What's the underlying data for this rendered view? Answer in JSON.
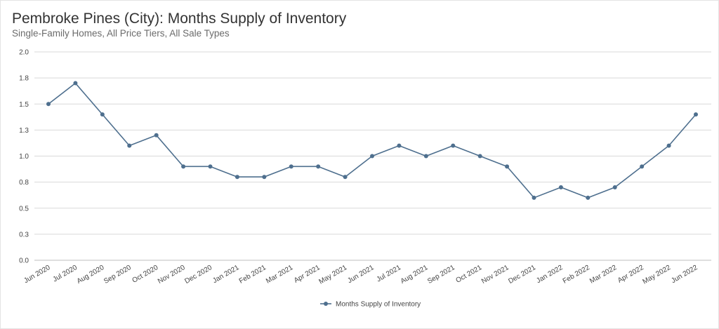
{
  "chart_data": {
    "type": "line",
    "title": "Pembroke Pines (City): Months Supply of Inventory",
    "subtitle": "Single-Family Homes, All Price Tiers, All Sale Types",
    "xlabel": "",
    "ylabel": "",
    "ylim": [
      0,
      2.0
    ],
    "yticks": [
      {
        "value": 0.0,
        "label": "0.0"
      },
      {
        "value": 0.25,
        "label": "0.3"
      },
      {
        "value": 0.5,
        "label": "0.5"
      },
      {
        "value": 0.75,
        "label": "0.8"
      },
      {
        "value": 1.0,
        "label": "1.0"
      },
      {
        "value": 1.25,
        "label": "1.3"
      },
      {
        "value": 1.5,
        "label": "1.5"
      },
      {
        "value": 1.75,
        "label": "1.8"
      },
      {
        "value": 2.0,
        "label": "2.0"
      }
    ],
    "grid": true,
    "legend_position": "bottom-center",
    "categories": [
      "Jun 2020",
      "Jul 2020",
      "Aug 2020",
      "Sep 2020",
      "Oct 2020",
      "Nov 2020",
      "Dec 2020",
      "Jan 2021",
      "Feb 2021",
      "Mar 2021",
      "Apr 2021",
      "May 2021",
      "Jun 2021",
      "Jul 2021",
      "Aug 2021",
      "Sep 2021",
      "Oct 2021",
      "Nov 2021",
      "Dec 2021",
      "Jan 2022",
      "Feb 2022",
      "Mar 2022",
      "Apr 2022",
      "May 2022",
      "Jun 2022"
    ],
    "series": [
      {
        "name": "Months Supply of Inventory",
        "color": "#4e6f8e",
        "values": [
          1.5,
          1.7,
          1.4,
          1.1,
          1.2,
          0.9,
          0.9,
          0.8,
          0.8,
          0.9,
          0.9,
          0.8,
          1.0,
          1.1,
          1.0,
          1.1,
          1.0,
          0.9,
          0.6,
          0.7,
          0.6,
          0.7,
          0.9,
          1.1,
          1.4
        ]
      }
    ]
  },
  "colors": {
    "grid": "#d9d9d9",
    "axis_line": "#bdbdbd",
    "line": "#4e6f8e"
  }
}
